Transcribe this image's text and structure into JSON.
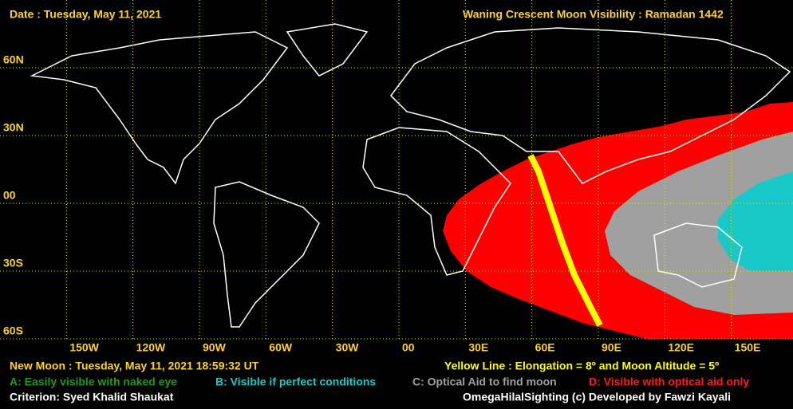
{
  "header": {
    "date": "Date : Tuesday, May 11, 2021",
    "title": "Waning Crescent Moon Visibility : Ramadan 1442"
  },
  "lat_labels": [
    "60N",
    "30N",
    "00",
    "30S",
    "60S"
  ],
  "lon_labels": [
    "150W",
    "120W",
    "90W",
    "60W",
    "30W",
    "00",
    "30E",
    "60E",
    "90E",
    "120E",
    "150E"
  ],
  "footer": {
    "new_moon": "New Moon : Tuesday, May 11, 2021  18:59:32  UT",
    "yellow_line": "Yellow Line : Elongation = 8º  and Moon Altitude = 5º",
    "legend": [
      {
        "text": "A: Easily visible with naked eye",
        "color": "#1f9a1f"
      },
      {
        "text": "B: Visible if perfect conditions",
        "color": "#19c8c8"
      },
      {
        "text": "C: Optical Aid to find moon",
        "color": "#a0a0a0"
      },
      {
        "text": "D: Visible with optical aid only",
        "color": "#ff1a1a"
      }
    ],
    "criterion": "Criterion: Syed Khalid Shaukat",
    "credit": "OmegaHilalSighting  (c)  Developed by Fawzi Kayali"
  }
}
